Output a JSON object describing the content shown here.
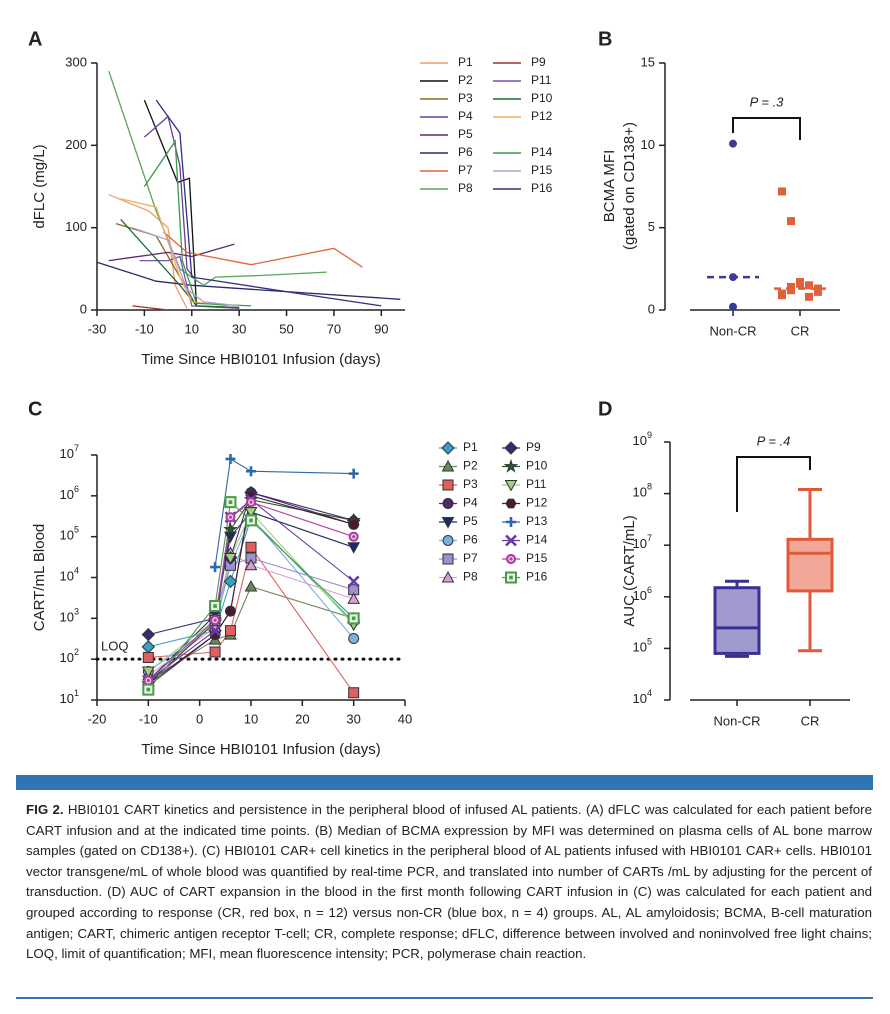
{
  "chart_data": [
    {
      "type": "line",
      "panel": "A",
      "ylabel": "dFLC (mg/L)",
      "xlabel": "Time Since HBI0101 Infusion (days)",
      "xlim": [
        -30,
        100
      ],
      "xticks": [
        -30,
        -10,
        10,
        30,
        50,
        70,
        90
      ],
      "ylim": [
        0,
        300
      ],
      "yticks": [
        0,
        100,
        200,
        300
      ],
      "series": [
        {
          "name": "P1",
          "color": "#e8a070",
          "x": [
            -25,
            -8,
            0,
            3,
            8
          ],
          "values": [
            140,
            120,
            100,
            30,
            2
          ]
        },
        {
          "name": "P2",
          "color": "#111111",
          "x": [
            -10,
            4,
            9,
            12
          ],
          "values": [
            255,
            155,
            160,
            5
          ]
        },
        {
          "name": "P3",
          "color": "#8b6a1c",
          "x": [
            -22,
            -5,
            5,
            12,
            30
          ],
          "values": [
            105,
            90,
            40,
            5,
            3
          ]
        },
        {
          "name": "P4",
          "color": "#6a3d9a",
          "x": [
            -10,
            0,
            5,
            8,
            12
          ],
          "values": [
            210,
            235,
            175,
            50,
            35
          ]
        },
        {
          "name": "P5",
          "color": "#5b2a6e",
          "x": [
            -25,
            0,
            10,
            28
          ],
          "values": [
            60,
            70,
            65,
            80
          ]
        },
        {
          "name": "P6",
          "color": "#2b2b6b",
          "x": [
            -30,
            -5,
            10,
            98
          ],
          "values": [
            58,
            35,
            30,
            13
          ]
        },
        {
          "name": "P7",
          "color": "#e0663a",
          "x": [
            -2,
            8,
            35,
            70,
            82
          ],
          "values": [
            95,
            70,
            55,
            75,
            52
          ]
        },
        {
          "name": "P8",
          "color": "#5aa55a",
          "x": [
            -25,
            -5,
            5,
            15,
            20,
            40,
            67
          ],
          "values": [
            290,
            120,
            50,
            30,
            40,
            42,
            46
          ]
        },
        {
          "name": "P9",
          "color": "#a0302a",
          "x": [
            -15,
            0
          ],
          "values": [
            5,
            0
          ]
        },
        {
          "name": "P11",
          "color": "#7a4fb0",
          "x": [
            -12,
            0,
            5,
            10,
            30
          ],
          "values": [
            60,
            60,
            65,
            5,
            2
          ]
        },
        {
          "name": "P10",
          "color": "#1f6b3a",
          "x": [
            -20,
            5,
            12,
            30
          ],
          "values": [
            110,
            30,
            5,
            3
          ]
        },
        {
          "name": "P12",
          "color": "#f0b060",
          "x": [
            -20,
            -5,
            5,
            10,
            25
          ],
          "values": [
            135,
            125,
            40,
            10,
            5
          ]
        },
        {
          "name": "P14",
          "color": "#3a9a4a",
          "x": [
            -10,
            3,
            6,
            12,
            35
          ],
          "values": [
            150,
            205,
            60,
            8,
            5
          ]
        },
        {
          "name": "P15",
          "color": "#b0a0d0",
          "x": [
            -15,
            0,
            8,
            15,
            30
          ],
          "values": [
            100,
            85,
            25,
            10,
            5
          ]
        },
        {
          "name": "P16",
          "color": "#303080",
          "x": [
            -5,
            5,
            10,
            55,
            90
          ],
          "values": [
            255,
            215,
            40,
            20,
            5
          ]
        }
      ]
    },
    {
      "type": "strip",
      "panel": "B",
      "ylabel": [
        "BCMA MFI",
        "(gated on CD138+)"
      ],
      "categories": [
        "Non-CR",
        "CR"
      ],
      "colors": [
        "#3a3a9a",
        "#e0603a"
      ],
      "markers": [
        "circle",
        "square"
      ],
      "values": [
        [
          10.1,
          2.0,
          0.2
        ],
        [
          7.2,
          5.4,
          1.7,
          1.5,
          1.3,
          1.0,
          1.2,
          1.6,
          0.8,
          1.1,
          0.9,
          1.4
        ]
      ],
      "medians": [
        2.0,
        1.3
      ],
      "ylim": [
        0,
        15
      ],
      "yticks": [
        0,
        5,
        10,
        15
      ],
      "annotation": "P = .3"
    },
    {
      "type": "line",
      "panel": "C",
      "log": true,
      "ylabel": "CART/mL Blood",
      "xlabel": "Time Since HBI0101 Infusion (days)",
      "xlim": [
        -20,
        40
      ],
      "xticks": [
        -20,
        -10,
        0,
        10,
        20,
        30,
        40
      ],
      "ylim": [
        10,
        10000000
      ],
      "yticks": [
        {
          "value": 10,
          "label": "10",
          "exponent": "1"
        },
        {
          "value": 100,
          "label": "10",
          "exponent": "2"
        },
        {
          "value": 1000,
          "label": "10",
          "exponent": "3"
        },
        {
          "value": 10000,
          "label": "10",
          "exponent": "4"
        },
        {
          "value": 100000,
          "label": "10",
          "exponent": "5"
        },
        {
          "value": 1000000,
          "label": "10",
          "exponent": "6"
        },
        {
          "value": 10000000,
          "label": "10",
          "exponent": "7"
        }
      ],
      "reference_line": {
        "value": 100,
        "label": "LOQ"
      },
      "x": [
        -10,
        3,
        6,
        10,
        30
      ],
      "series": [
        {
          "name": "P1",
          "color": "#3a9fc7",
          "marker": "diamond",
          "values": [
            200,
            500,
            8000,
            280000,
            800
          ]
        },
        {
          "name": "P2",
          "color": "#6b8a5a",
          "marker": "triangle",
          "values": [
            30,
            300,
            400,
            6000,
            1000
          ]
        },
        {
          "name": "P3",
          "color": "#e06060",
          "marker": "square",
          "values": [
            110,
            150,
            500,
            55000,
            15
          ]
        },
        {
          "name": "P4",
          "color": "#4b2a6e",
          "marker": "circle",
          "values": [
            22,
            400,
            1500,
            1200000,
            200000
          ]
        },
        {
          "name": "P5",
          "color": "#1e2e5e",
          "marker": "triangle-down",
          "values": [
            30,
            1200,
            100000,
            400000,
            55000
          ]
        },
        {
          "name": "P6",
          "color": "#7ab0dc",
          "marker": "circle",
          "values": [
            50,
            700,
            20000,
            300000,
            320
          ]
        },
        {
          "name": "P7",
          "color": "#a090d0",
          "marker": "square",
          "values": [
            20,
            1000,
            20000,
            30000,
            5000
          ]
        },
        {
          "name": "P8",
          "color": "#d8a0d0",
          "marker": "triangle",
          "values": [
            40,
            600,
            40000,
            20000,
            3000
          ]
        },
        {
          "name": "P9",
          "color": "#3a2a70",
          "marker": "diamond",
          "values": [
            400,
            1000,
            30000,
            1200000,
            250000
          ]
        },
        {
          "name": "P10",
          "color": "#2a5a2a",
          "marker": "star",
          "values": [
            25,
            800,
            150000,
            800000,
            250000
          ]
        },
        {
          "name": "P11",
          "color": "#a0d080",
          "marker": "triangle-down",
          "values": [
            50,
            900,
            30000,
            400000,
            700
          ]
        },
        {
          "name": "P12",
          "color": "#4a1a30",
          "marker": "hexagon",
          "values": [
            25,
            400,
            1500,
            1000000,
            200000
          ]
        },
        {
          "name": "P13",
          "color": "#2a6aa8",
          "marker": "plus",
          "values": [
            null,
            18000,
            8000000,
            4000000,
            3500000
          ]
        },
        {
          "name": "P14",
          "color": "#6a3aa8",
          "marker": "x",
          "values": [
            30,
            500,
            300000,
            800000,
            8000
          ]
        },
        {
          "name": "P15",
          "color": "#b040a0",
          "marker": "circle-dot",
          "values": [
            30,
            900,
            300000,
            700000,
            100000
          ]
        },
        {
          "name": "P16",
          "color": "#4a9a4a",
          "marker": "square-dot",
          "values": [
            18,
            2000,
            700000,
            250000,
            1000
          ]
        }
      ]
    },
    {
      "type": "box",
      "panel": "D",
      "log": true,
      "ylabel": "AUC (CART/mL)",
      "categories": [
        "Non-CR",
        "CR"
      ],
      "colors": [
        "#3a3090",
        "#e05a3a"
      ],
      "fills": [
        "#a09ad0",
        "#f2a898"
      ],
      "boxes": [
        {
          "min": 70000,
          "q1": 80000,
          "median": 250000,
          "q3": 1500000,
          "max": 2000000
        },
        {
          "min": 90000,
          "q1": 1300000,
          "median": 7000000,
          "q3": 13000000,
          "max": 120000000
        }
      ],
      "ylim": [
        10000,
        1000000000
      ],
      "yticks": [
        {
          "value": 10000,
          "label": "10",
          "exponent": "4"
        },
        {
          "value": 100000,
          "label": "10",
          "exponent": "5"
        },
        {
          "value": 1000000,
          "label": "10",
          "exponent": "6"
        },
        {
          "value": 10000000,
          "label": "10",
          "exponent": "7"
        },
        {
          "value": 100000000,
          "label": "10",
          "exponent": "8"
        },
        {
          "value": 1000000000,
          "label": "10",
          "exponent": "9"
        }
      ],
      "annotation": "P = .4"
    }
  ],
  "caption": {
    "label": "FIG 2.",
    "text": "HBI0101 CART kinetics and persistence in the peripheral blood of infused AL patients. (A) dFLC was calculated for each patient before CART infusion and at the indicated time points. (B) Median of BCMA expression by MFI was determined on plasma cells of AL bone marrow samples (gated on CD138+). (C) HBI0101 CAR+ cell kinetics in the peripheral blood of AL patients infused with HBI0101 CAR+ cells. HBI0101 vector transgene/mL of whole blood was quantified by real-time PCR, and translated into number of CARTs /mL by adjusting for the percent of transduction. (D) AUC of CART expansion in the blood in the first month following CART infusion in (C) was calculated for each patient and grouped according to response (CR, red box, n = 12) versus non-CR (blue box, n = 4) groups. AL, AL amyloidosis; BCMA, B-cell maturation antigen; CART, chimeric antigen receptor T-cell; CR, complete response; dFLC, difference between involved and noninvolved free light chains; LOQ, limit of quantification; MFI, mean fluorescence intensity; PCR, polymerase chain reaction."
  }
}
